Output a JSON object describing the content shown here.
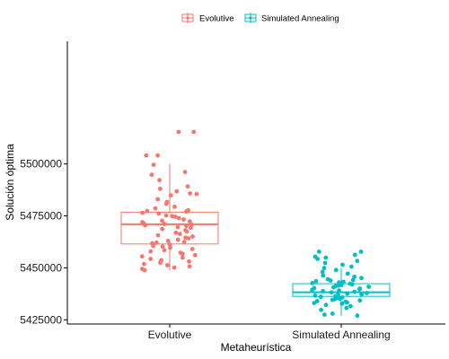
{
  "chart_data": {
    "type": "boxplot",
    "title": "",
    "xlabel": "Metaheurística",
    "ylabel": "Solución óptima",
    "categories": [
      "Evolutive",
      "Simulated Annealing"
    ],
    "colors": [
      "#F8766D",
      "#00BFC4"
    ],
    "ylim": [
      5423000,
      5559000
    ],
    "yticks": [
      5425000,
      5450000,
      5475000,
      5500000
    ],
    "ytick_labels": [
      "5425000",
      "5450000",
      "5475000",
      "5500000"
    ],
    "legend": {
      "position": "top",
      "entries": [
        "Evolutive",
        "Simulated Annealing"
      ]
    },
    "grid": false,
    "boxes": [
      {
        "name": "Evolutive",
        "min": 5448800,
        "q1": 5461500,
        "median": 5471000,
        "q3": 5476800,
        "max": 5500000
      },
      {
        "name": "Simulated Annealing",
        "min": 5427000,
        "q1": 5436300,
        "median": 5438300,
        "q3": 5442400,
        "max": 5449900
      }
    ],
    "points": [
      [
        5515400,
        5515400,
        5504100,
        5504100,
        5499600,
        5496100,
        5494800,
        5492200,
        5489200,
        5488000,
        5486800,
        5485800,
        5485500,
        5484900,
        5483000,
        5481700,
        5480800,
        5479400,
        5478600,
        5477700,
        5477400,
        5477100,
        5476500,
        5476100,
        5475200,
        5474900,
        5474600,
        5473900,
        5473300,
        5472700,
        5472400,
        5472000,
        5471400,
        5471100,
        5470800,
        5470500,
        5470200,
        5469600,
        5469300,
        5468700,
        5468100,
        5467500,
        5466900,
        5466300,
        5465700,
        5465100,
        5464500,
        5464200,
        5463600,
        5463000,
        5462400,
        5462100,
        5461800,
        5461200,
        5460600,
        5460300,
        5459700,
        5459100,
        5458500,
        5457900,
        5457300,
        5456700,
        5456100,
        5455500,
        5454900,
        5454300,
        5453700,
        5453100,
        5452500,
        5451900,
        5451300,
        5450700,
        5450100,
        5449500,
        5448900
      ],
      [
        5457800,
        5457800,
        5456300,
        5455400,
        5454900,
        5454300,
        5453300,
        5452400,
        5451500,
        5450600,
        5449900,
        5449000,
        5448100,
        5447200,
        5446300,
        5445700,
        5445100,
        5444500,
        5444200,
        5443900,
        5443600,
        5443300,
        5443000,
        5442700,
        5442400,
        5442100,
        5441800,
        5441500,
        5441200,
        5440900,
        5440600,
        5440300,
        5440000,
        5439700,
        5439400,
        5439100,
        5438800,
        5438500,
        5438200,
        5437900,
        5437600,
        5437300,
        5437000,
        5436700,
        5436400,
        5436100,
        5435800,
        5435500,
        5435200,
        5434900,
        5434600,
        5434300,
        5434000,
        5433700,
        5433400,
        5433100,
        5432800,
        5432200,
        5431600,
        5430700,
        5429800,
        5428000,
        5427500,
        5427000
      ]
    ]
  }
}
